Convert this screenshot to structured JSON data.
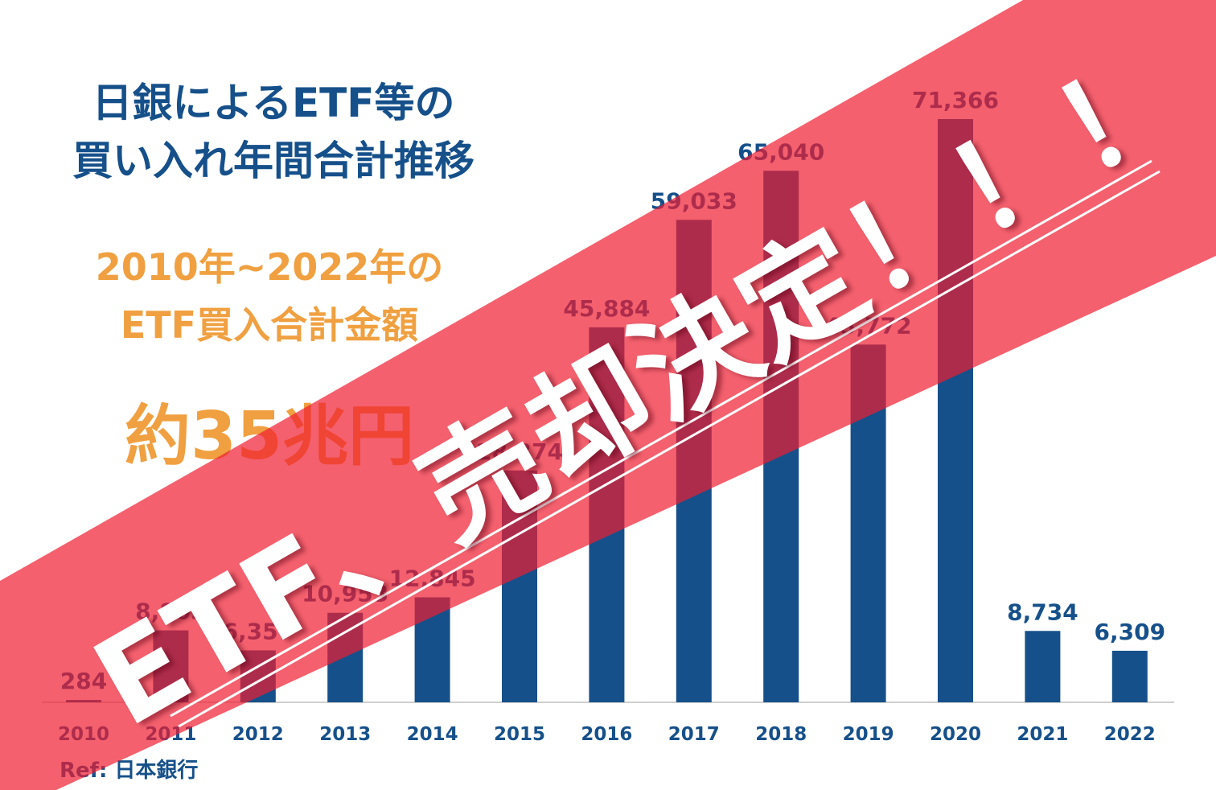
{
  "title": [
    "日銀によるETF等の",
    "買い入れ年間合計推移"
  ],
  "subtitle": [
    "2010年~2022年の",
    "ETF買入合計金額"
  ],
  "total": "約35兆円",
  "reference": "Ref: 日本銀行",
  "banner": {
    "text": "ETF、売却決定！！！",
    "color": "#ef1c30"
  },
  "colors": {
    "bar": "#16508a",
    "title": "#16508a",
    "highlight": "#f0a040"
  },
  "chart_data": {
    "type": "bar",
    "categories": [
      "2010",
      "2011",
      "2012",
      "2013",
      "2014",
      "2015",
      "2016",
      "2017",
      "2018",
      "2019",
      "2020",
      "2021",
      "2022"
    ],
    "values": [
      284,
      8803,
      6357,
      10953,
      12845,
      28374,
      45884,
      59033,
      65040,
      43772,
      71366,
      8734,
      6309
    ],
    "labels": [
      "284",
      "8,803",
      "6,357",
      "10,953",
      "12,845",
      "28,374",
      "45,884",
      "59,033",
      "65,040",
      "43,772",
      "71,366",
      "8,734",
      "6,309"
    ],
    "ylim": [
      0,
      71366
    ],
    "grid": false,
    "legend": "none"
  }
}
